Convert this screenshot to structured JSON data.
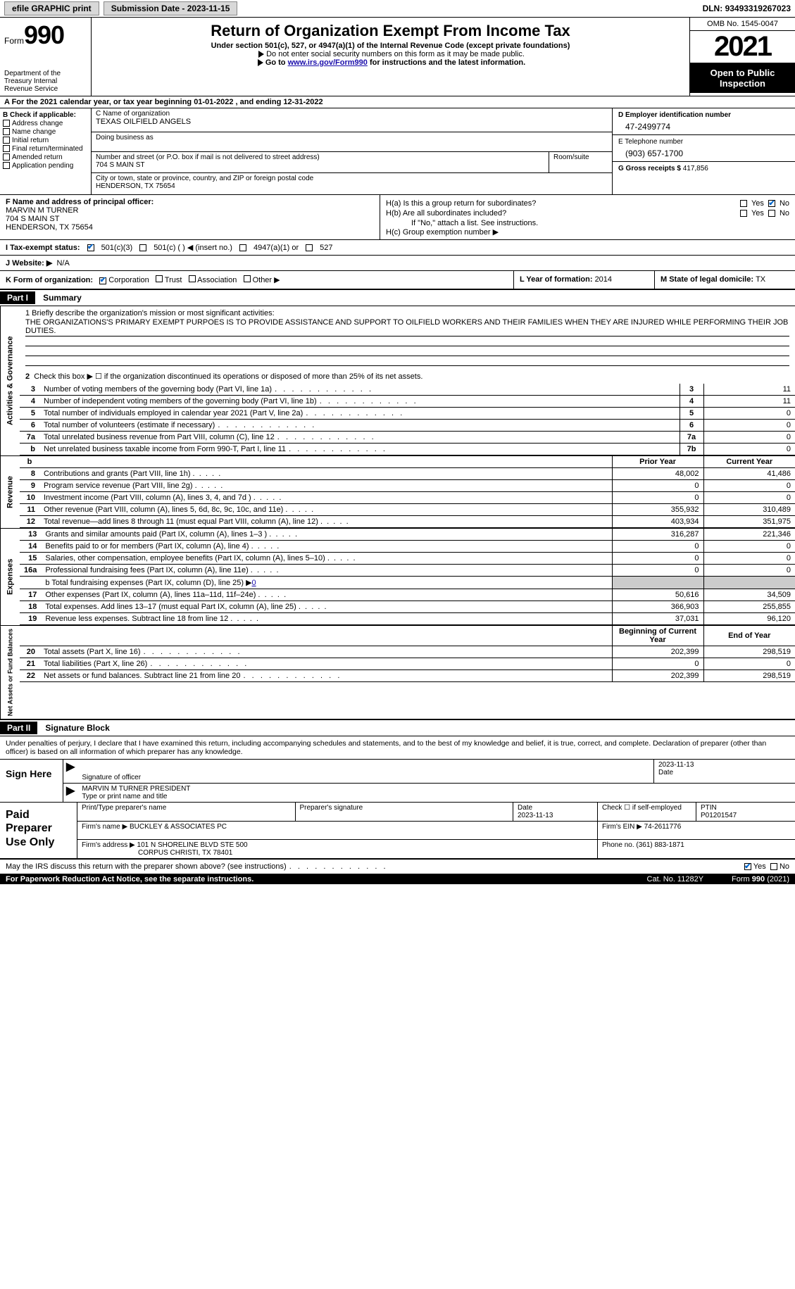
{
  "topbar": {
    "efile": "efile GRAPHIC print",
    "sub_label": "Submission Date - ",
    "sub_date": "2023-11-15",
    "dln_label": "DLN: ",
    "dln": "93493319267023"
  },
  "header": {
    "form_label": "Form",
    "form_num": "990",
    "dept": "Department of the Treasury Internal Revenue Service",
    "title": "Return of Organization Exempt From Income Tax",
    "sub": "Under section 501(c), 527, or 4947(a)(1) of the Internal Revenue Code (except private foundations)",
    "line1": "Do not enter social security numbers on this form as it may be made public.",
    "line2_pre": "Go to ",
    "line2_link": "www.irs.gov/Form990",
    "line2_post": " for instructions and the latest information.",
    "omb": "OMB No. 1545-0047",
    "year": "2021",
    "open": "Open to Public Inspection"
  },
  "period": {
    "text": "A For the 2021 calendar year, or tax year beginning 01-01-2022  , and ending 12-31-2022"
  },
  "boxB": {
    "label": "B Check if applicable:",
    "items": [
      "Address change",
      "Name change",
      "Initial return",
      "Final return/terminated",
      "Amended return",
      "Application pending"
    ]
  },
  "boxC": {
    "name_label": "C Name of organization",
    "name": "TEXAS OILFIELD ANGELS",
    "dba_label": "Doing business as",
    "addr_label": "Number and street (or P.O. box if mail is not delivered to street address)",
    "addr": "704 S MAIN ST",
    "room_label": "Room/suite",
    "city_label": "City or town, state or province, country, and ZIP or foreign postal code",
    "city": "HENDERSON, TX  75654"
  },
  "boxD": {
    "label": "D Employer identification number",
    "val": "47-2499774"
  },
  "boxE": {
    "label": "E Telephone number",
    "val": "(903) 657-1700"
  },
  "boxG": {
    "label": "G Gross receipts $ ",
    "val": "417,856"
  },
  "boxF": {
    "label": "F Name and address of principal officer:",
    "name": "MARVIN M TURNER",
    "addr": "704 S MAIN ST",
    "city": "HENDERSON, TX  75654"
  },
  "boxH": {
    "a": "H(a)  Is this a group return for subordinates?",
    "b": "H(b)  Are all subordinates included?",
    "b_note": "If \"No,\" attach a list. See instructions.",
    "c": "H(c)  Group exemption number ▶",
    "yes": "Yes",
    "no": "No",
    "a_no_checked": true
  },
  "rowI": {
    "label": "I  Tax-exempt status:",
    "opts": [
      "501(c)(3)",
      "501(c) (  ) ◀ (insert no.)",
      "4947(a)(1) or",
      "527"
    ]
  },
  "rowJ": {
    "label": "J  Website: ▶",
    "val": "N/A"
  },
  "rowK": {
    "label": "K Form of organization:",
    "opts": [
      "Corporation",
      "Trust",
      "Association",
      "Other ▶"
    ],
    "year_label": "L Year of formation: ",
    "year_val": "2014",
    "state_label": "M State of legal domicile: ",
    "state_val": "TX"
  },
  "partI": {
    "num": "Part I",
    "title": "Summary"
  },
  "tabs": {
    "ag": "Activities & Governance",
    "rev": "Revenue",
    "exp": "Expenses",
    "net": "Net Assets or Fund Balances"
  },
  "mission": {
    "label": "1  Briefly describe the organization's mission or most significant activities:",
    "text": "THE ORGANIZATIONS'S PRIMARY EXEMPT PURPOES IS TO PROVIDE ASSISTANCE AND SUPPORT TO OILFIELD WORKERS AND THEIR FAMILIES WHEN THEY ARE INJURED WHILE PERFORMING THEIR JOB DUTIES."
  },
  "line2": "Check this box ▶ ☐  if the organization discontinued its operations or disposed of more than 25% of its net assets.",
  "ag_rows": [
    {
      "n": "3",
      "d": "Number of voting members of the governing body (Part VI, line 1a)",
      "box": "3",
      "v": "11"
    },
    {
      "n": "4",
      "d": "Number of independent voting members of the governing body (Part VI, line 1b)",
      "box": "4",
      "v": "11"
    },
    {
      "n": "5",
      "d": "Total number of individuals employed in calendar year 2021 (Part V, line 2a)",
      "box": "5",
      "v": "0"
    },
    {
      "n": "6",
      "d": "Total number of volunteers (estimate if necessary)",
      "box": "6",
      "v": "0"
    },
    {
      "n": "7a",
      "d": "Total unrelated business revenue from Part VIII, column (C), line 12",
      "box": "7a",
      "v": "0"
    },
    {
      "n": "b",
      "d": "Net unrelated business taxable income from Form 990-T, Part I, line 11",
      "box": "7b",
      "v": "0"
    }
  ],
  "py_cy_hdr": {
    "py": "Prior Year",
    "cy": "Current Year"
  },
  "rev_rows": [
    {
      "n": "8",
      "d": "Contributions and grants (Part VIII, line 1h)",
      "py": "48,002",
      "cy": "41,486"
    },
    {
      "n": "9",
      "d": "Program service revenue (Part VIII, line 2g)",
      "py": "0",
      "cy": "0"
    },
    {
      "n": "10",
      "d": "Investment income (Part VIII, column (A), lines 3, 4, and 7d )",
      "py": "0",
      "cy": "0"
    },
    {
      "n": "11",
      "d": "Other revenue (Part VIII, column (A), lines 5, 6d, 8c, 9c, 10c, and 11e)",
      "py": "355,932",
      "cy": "310,489"
    },
    {
      "n": "12",
      "d": "Total revenue—add lines 8 through 11 (must equal Part VIII, column (A), line 12)",
      "py": "403,934",
      "cy": "351,975"
    }
  ],
  "exp_rows": [
    {
      "n": "13",
      "d": "Grants and similar amounts paid (Part IX, column (A), lines 1–3 )",
      "py": "316,287",
      "cy": "221,346"
    },
    {
      "n": "14",
      "d": "Benefits paid to or for members (Part IX, column (A), line 4)",
      "py": "0",
      "cy": "0"
    },
    {
      "n": "15",
      "d": "Salaries, other compensation, employee benefits (Part IX, column (A), lines 5–10)",
      "py": "0",
      "cy": "0"
    },
    {
      "n": "16a",
      "d": "Professional fundraising fees (Part IX, column (A), line 11e)",
      "py": "0",
      "cy": "0"
    }
  ],
  "line16b_pre": "b  Total fundraising expenses (Part IX, column (D), line 25) ▶",
  "line16b_val": "0",
  "exp_rows2": [
    {
      "n": "17",
      "d": "Other expenses (Part IX, column (A), lines 11a–11d, 11f–24e)",
      "py": "50,616",
      "cy": "34,509"
    },
    {
      "n": "18",
      "d": "Total expenses. Add lines 13–17 (must equal Part IX, column (A), line 25)",
      "py": "366,903",
      "cy": "255,855"
    },
    {
      "n": "19",
      "d": "Revenue less expenses. Subtract line 18 from line 12",
      "py": "37,031",
      "cy": "96,120"
    }
  ],
  "net_hdr": {
    "b": "Beginning of Current Year",
    "e": "End of Year"
  },
  "net_rows": [
    {
      "n": "20",
      "d": "Total assets (Part X, line 16)",
      "b": "202,399",
      "e": "298,519"
    },
    {
      "n": "21",
      "d": "Total liabilities (Part X, line 26)",
      "b": "0",
      "e": "0"
    },
    {
      "n": "22",
      "d": "Net assets or fund balances. Subtract line 21 from line 20",
      "b": "202,399",
      "e": "298,519"
    }
  ],
  "partII": {
    "num": "Part II",
    "title": "Signature Block"
  },
  "penalties": "Under penalties of perjury, I declare that I have examined this return, including accompanying schedules and statements, and to the best of my knowledge and belief, it is true, correct, and complete. Declaration of preparer (other than officer) is based on all information of which preparer has any knowledge.",
  "sign": {
    "here": "Sign Here",
    "sig_label": "Signature of officer",
    "date_label": "Date",
    "date": "2023-11-13",
    "name": "MARVIN M TURNER  PRESIDENT",
    "name_label": "Type or print name and title"
  },
  "paid": {
    "here": "Paid Preparer Use Only",
    "h1": "Print/Type preparer's name",
    "h2": "Preparer's signature",
    "h3_label": "Date",
    "h3": "2023-11-13",
    "h4": "Check ☐ if self-employed",
    "h5_label": "PTIN",
    "h5": "P01201547",
    "firm_label": "Firm's name   ▶ ",
    "firm": "BUCKLEY & ASSOCIATES PC",
    "ein_label": "Firm's EIN ▶ ",
    "ein": "74-2611776",
    "addr_label": "Firm's address ▶ ",
    "addr": "101 N SHORELINE BLVD STE 500",
    "addr2": "CORPUS CHRISTI, TX  78401",
    "phone_label": "Phone no. ",
    "phone": "(361) 883-1871"
  },
  "discuss": {
    "text": "May the IRS discuss this return with the preparer shown above? (see instructions)",
    "yes": "Yes",
    "no": "No"
  },
  "footer": {
    "left": "For Paperwork Reduction Act Notice, see the separate instructions.",
    "mid": "Cat. No. 11282Y",
    "right": "Form 990 (2021)"
  }
}
